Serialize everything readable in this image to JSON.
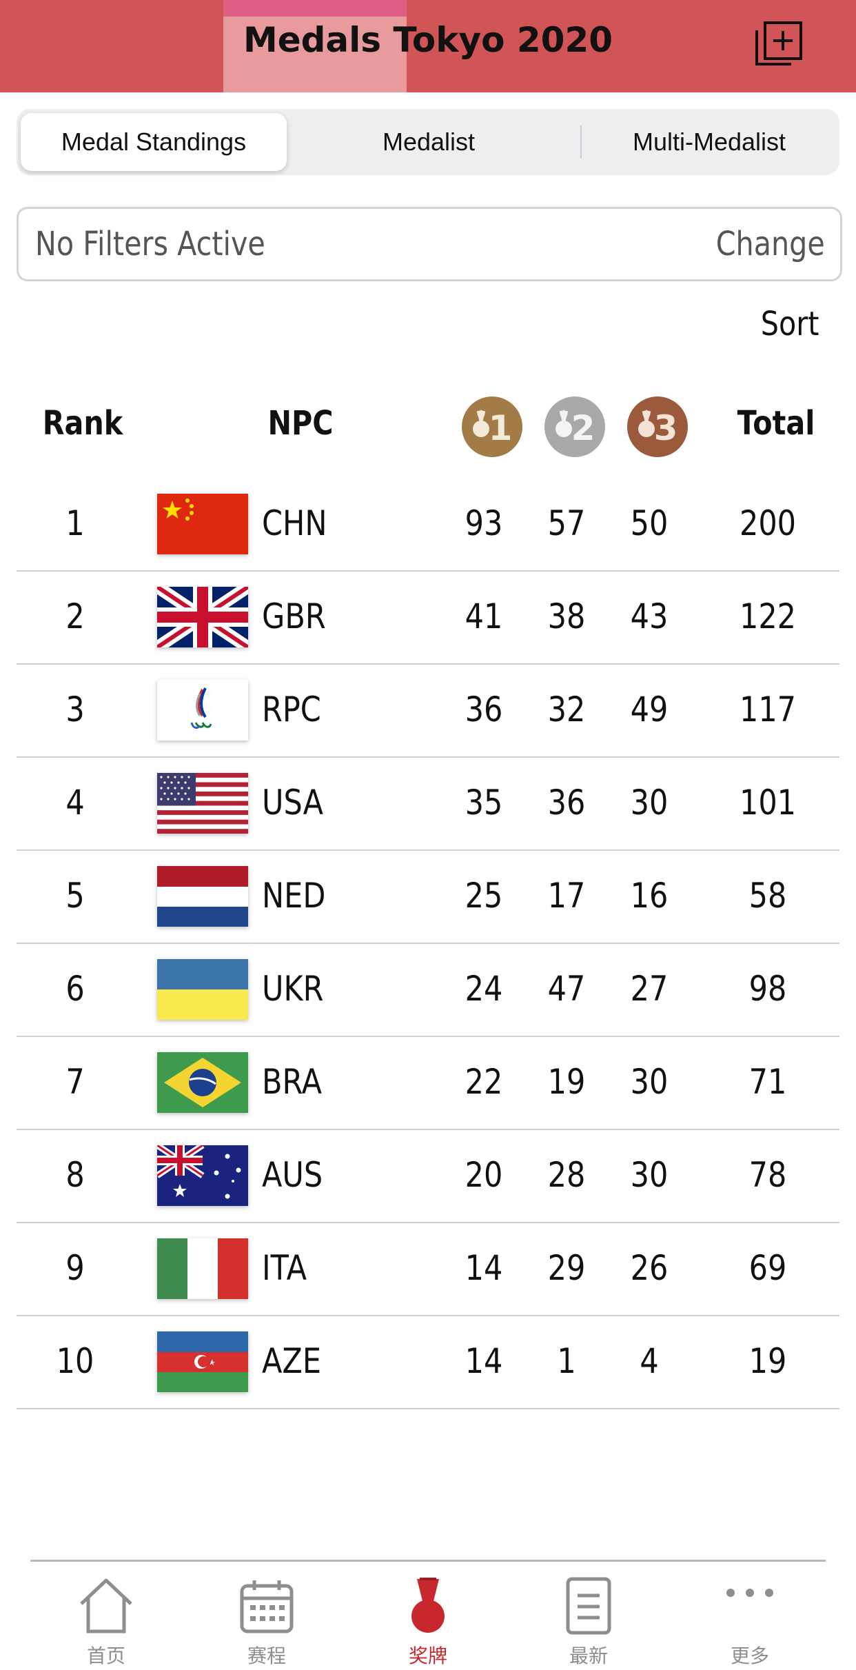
{
  "header": {
    "title": "Medals Tokyo 2020",
    "share_icon": "share-window-icon"
  },
  "segment": {
    "tabs": [
      {
        "label": "Medal Standings",
        "active": true
      },
      {
        "label": "Medalist",
        "active": false
      },
      {
        "label": "Multi-Medalist",
        "active": false
      }
    ]
  },
  "filter": {
    "status": "No Filters Active",
    "change_label": "Change"
  },
  "sort_label": "Sort",
  "table": {
    "headers": {
      "rank": "Rank",
      "npc": "NPC",
      "total": "Total"
    },
    "medal_icons": [
      {
        "label": "1",
        "name": "gold-medal-icon",
        "color": "#a27b47"
      },
      {
        "label": "2",
        "name": "silver-medal-icon",
        "color": "#a8a8a8"
      },
      {
        "label": "3",
        "name": "bronze-medal-icon",
        "color": "#9b5a3c"
      }
    ],
    "rows": [
      {
        "rank": "1",
        "code": "CHN",
        "gold": "93",
        "silver": "57",
        "bronze": "50",
        "total": "200"
      },
      {
        "rank": "2",
        "code": "GBR",
        "gold": "41",
        "silver": "38",
        "bronze": "43",
        "total": "122"
      },
      {
        "rank": "3",
        "code": "RPC",
        "gold": "36",
        "silver": "32",
        "bronze": "49",
        "total": "117"
      },
      {
        "rank": "4",
        "code": "USA",
        "gold": "35",
        "silver": "36",
        "bronze": "30",
        "total": "101"
      },
      {
        "rank": "5",
        "code": "NED",
        "gold": "25",
        "silver": "17",
        "bronze": "16",
        "total": "58"
      },
      {
        "rank": "6",
        "code": "UKR",
        "gold": "24",
        "silver": "47",
        "bronze": "27",
        "total": "98"
      },
      {
        "rank": "7",
        "code": "BRA",
        "gold": "22",
        "silver": "19",
        "bronze": "30",
        "total": "71"
      },
      {
        "rank": "8",
        "code": "AUS",
        "gold": "20",
        "silver": "28",
        "bronze": "30",
        "total": "78"
      },
      {
        "rank": "9",
        "code": "ITA",
        "gold": "14",
        "silver": "29",
        "bronze": "26",
        "total": "69"
      },
      {
        "rank": "10",
        "code": "AZE",
        "gold": "14",
        "silver": "1",
        "bronze": "4",
        "total": "19"
      }
    ]
  },
  "tabbar": {
    "items": [
      {
        "label": "首页",
        "icon": "home-icon",
        "active": false
      },
      {
        "label": "赛程",
        "icon": "calendar-icon",
        "active": false
      },
      {
        "label": "奖牌",
        "icon": "medal-icon",
        "active": true
      },
      {
        "label": "最新",
        "icon": "news-icon",
        "active": false
      },
      {
        "label": "更多",
        "icon": "more-icon",
        "active": false
      }
    ]
  },
  "colors": {
    "header_bg": "#d15456",
    "accent": "#c8272d",
    "inactive_tab": "#8e8e8e"
  }
}
